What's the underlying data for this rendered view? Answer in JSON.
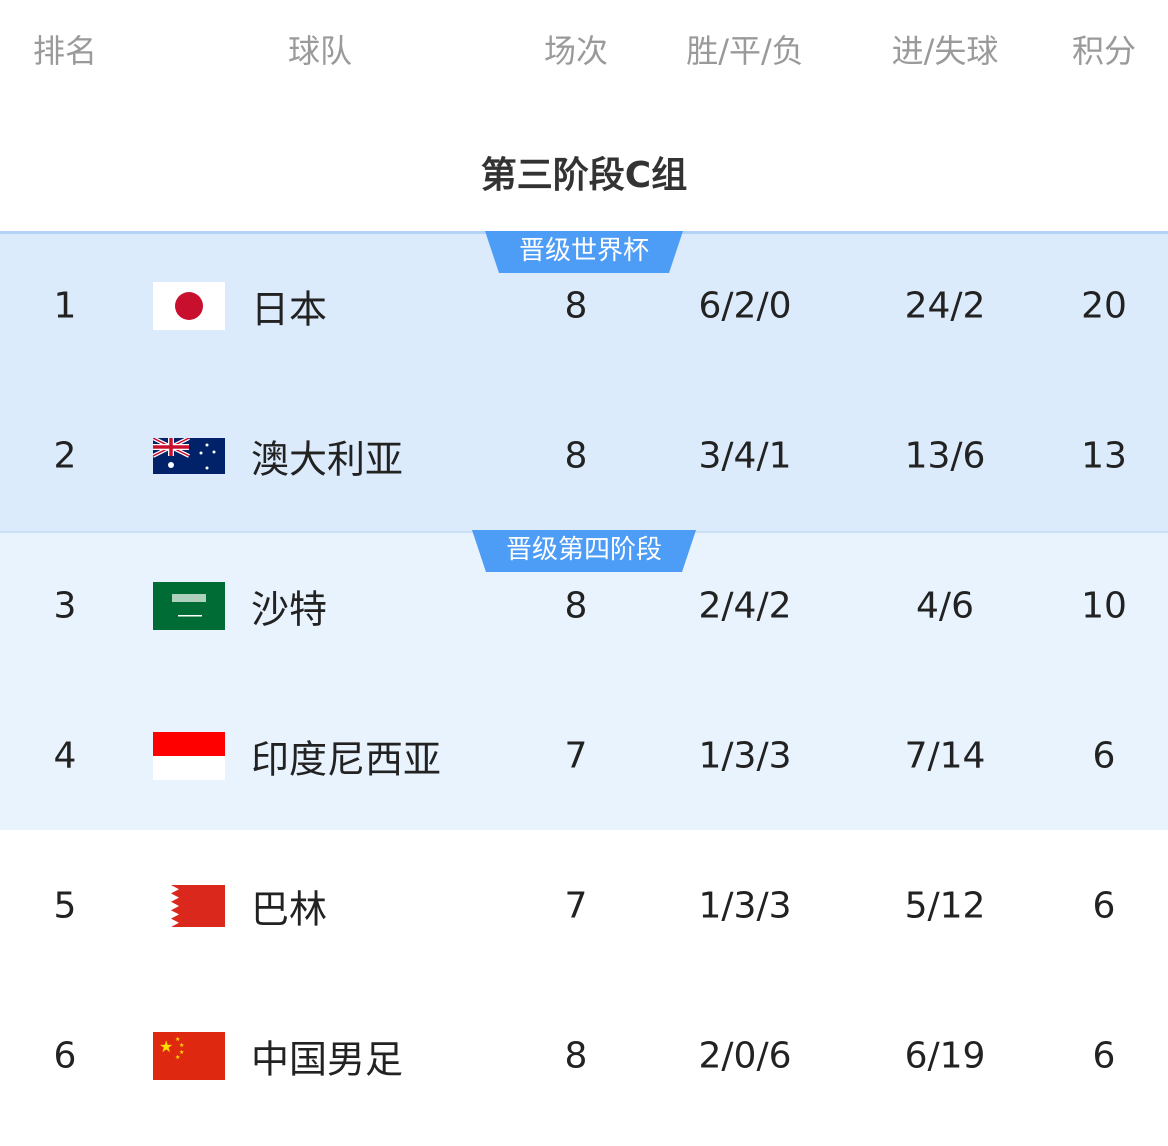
{
  "headers": {
    "rank": "排名",
    "team": "球队",
    "played": "场次",
    "wdl": "胜/平/负",
    "goals": "进/失球",
    "points": "积分"
  },
  "title": "第三阶段C组",
  "badges": {
    "qualify": "晋级世界杯",
    "fourth": "晋级第四阶段"
  },
  "colors": {
    "qualify_band": "#dcebfb",
    "fourth_band": "#e8f3fd",
    "badge": "#4d9cf5"
  },
  "rows": [
    {
      "rank": "1",
      "flag": "japan-flag",
      "team": "日本",
      "played": "8",
      "wdl": "6/2/0",
      "goals": "24/2",
      "points": "20"
    },
    {
      "rank": "2",
      "flag": "australia-flag",
      "team": "澳大利亚",
      "played": "8",
      "wdl": "3/4/1",
      "goals": "13/6",
      "points": "13"
    },
    {
      "rank": "3",
      "flag": "saudi-arabia-flag",
      "team": "沙特",
      "played": "8",
      "wdl": "2/4/2",
      "goals": "4/6",
      "points": "10"
    },
    {
      "rank": "4",
      "flag": "indonesia-flag",
      "team": "印度尼西亚",
      "played": "7",
      "wdl": "1/3/3",
      "goals": "7/14",
      "points": "6"
    },
    {
      "rank": "5",
      "flag": "bahrain-flag",
      "team": "巴林",
      "played": "7",
      "wdl": "1/3/3",
      "goals": "5/12",
      "points": "6"
    },
    {
      "rank": "6",
      "flag": "china-flag",
      "team": "中国男足",
      "played": "8",
      "wdl": "2/0/6",
      "goals": "6/19",
      "points": "6"
    }
  ]
}
